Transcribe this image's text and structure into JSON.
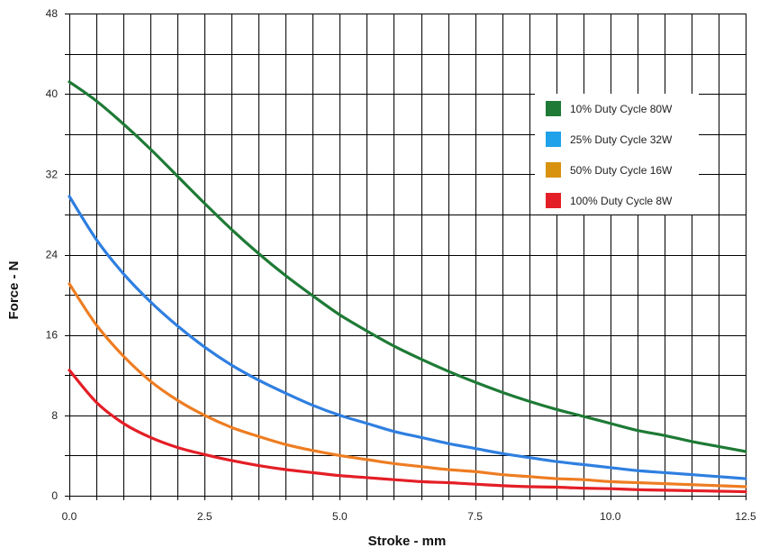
{
  "chart_data": {
    "type": "line",
    "title": "",
    "xlabel": "Stroke - mm",
    "ylabel": "Force - N",
    "xlim": [
      0,
      12.5
    ],
    "ylim": [
      0,
      48
    ],
    "x_ticks": [
      0,
      2.5,
      5,
      7.5,
      10,
      12.5
    ],
    "x_tick_labels": [
      "0.0",
      "2.5",
      "5.0",
      "7.5",
      "10.0",
      "12.5"
    ],
    "y_ticks": [
      0,
      8,
      16,
      24,
      32,
      40,
      48
    ],
    "y_tick_labels": [
      "0",
      "8",
      "16",
      "24",
      "32",
      "40",
      "48"
    ],
    "x_minor_step": 0.5,
    "y_minor_step": 4,
    "grid": true,
    "legend_position": "top-right",
    "x": [
      0,
      0.5,
      1,
      1.5,
      2,
      2.5,
      3,
      3.5,
      4,
      4.5,
      5,
      5.5,
      6,
      6.5,
      7,
      7.5,
      8,
      8.5,
      9,
      9.5,
      10,
      10.5,
      11,
      11.5,
      12,
      12.5
    ],
    "series": [
      {
        "name": "10% Duty Cycle 80W",
        "color": "#1e7a35",
        "values": [
          41.2,
          39.3,
          37.0,
          34.5,
          31.8,
          29.1,
          26.5,
          24.1,
          21.9,
          19.9,
          18.0,
          16.4,
          14.9,
          13.6,
          12.4,
          11.3,
          10.3,
          9.4,
          8.6,
          7.9,
          7.2,
          6.5,
          6.0,
          5.4,
          4.9,
          4.4
        ]
      },
      {
        "name": "25% Duty Cycle 32W",
        "color": "#2f7fe0",
        "values": [
          29.8,
          25.5,
          22.1,
          19.3,
          16.9,
          14.8,
          13.0,
          11.5,
          10.2,
          9.0,
          8.0,
          7.2,
          6.4,
          5.8,
          5.2,
          4.7,
          4.2,
          3.8,
          3.4,
          3.1,
          2.8,
          2.5,
          2.3,
          2.1,
          1.9,
          1.7
        ]
      },
      {
        "name": "50% Duty Cycle 16W",
        "color": "#ee7d22",
        "values": [
          21.1,
          17.0,
          13.9,
          11.4,
          9.5,
          8.0,
          6.8,
          5.9,
          5.1,
          4.5,
          4.0,
          3.6,
          3.2,
          2.9,
          2.6,
          2.4,
          2.1,
          1.9,
          1.7,
          1.6,
          1.4,
          1.3,
          1.2,
          1.1,
          1.0,
          0.9
        ]
      },
      {
        "name": "100% Duty Cycle 8W",
        "color": "#e41e26",
        "values": [
          12.5,
          9.3,
          7.2,
          5.8,
          4.8,
          4.1,
          3.5,
          3.0,
          2.6,
          2.3,
          2.0,
          1.8,
          1.6,
          1.4,
          1.3,
          1.15,
          1.0,
          0.9,
          0.85,
          0.75,
          0.7,
          0.6,
          0.55,
          0.5,
          0.45,
          0.4
        ]
      }
    ]
  }
}
